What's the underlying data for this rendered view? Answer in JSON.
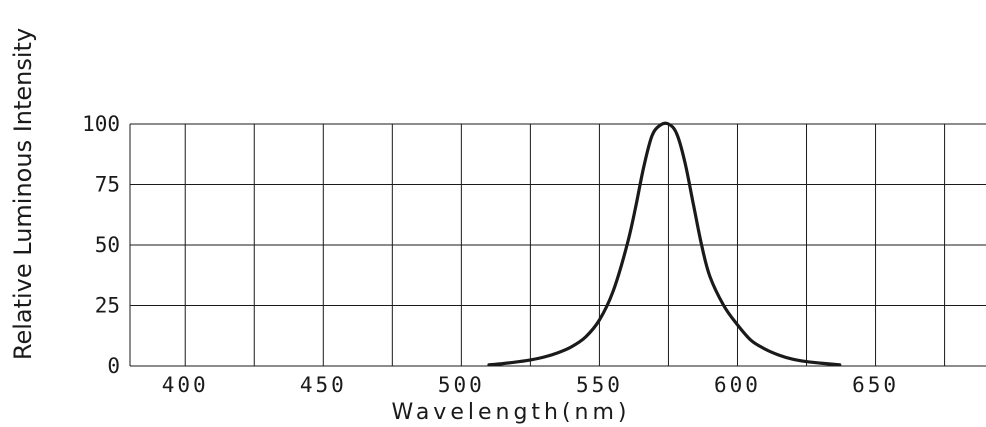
{
  "chart_data": {
    "type": "line",
    "title": "",
    "xlabel": "Wavelength(nm)",
    "ylabel": "Relative Luminous Intensity",
    "xlim": [
      380,
      690
    ],
    "ylim": [
      0,
      100
    ],
    "x_ticks": [
      400,
      450,
      500,
      550,
      600,
      650
    ],
    "y_ticks": [
      0,
      25,
      50,
      75,
      100
    ],
    "grid": true,
    "legend": "none",
    "series": [
      {
        "color": "#1a1a1a",
        "x": [
          510,
          515,
          520,
          525,
          530,
          535,
          540,
          545,
          550,
          555,
          560,
          563,
          566,
          569,
          572,
          575,
          578,
          581,
          584,
          587,
          590,
          595,
          600,
          605,
          610,
          615,
          620,
          625,
          630,
          637
        ],
        "y": [
          0.5,
          1,
          1.7,
          2.5,
          3.7,
          5.5,
          8,
          12,
          19,
          31,
          50,
          65,
          82,
          95,
          99.5,
          100,
          96,
          84,
          67,
          50,
          37,
          25,
          17,
          10.5,
          7,
          4.5,
          2.8,
          1.8,
          1.2,
          0.5
        ]
      }
    ]
  }
}
